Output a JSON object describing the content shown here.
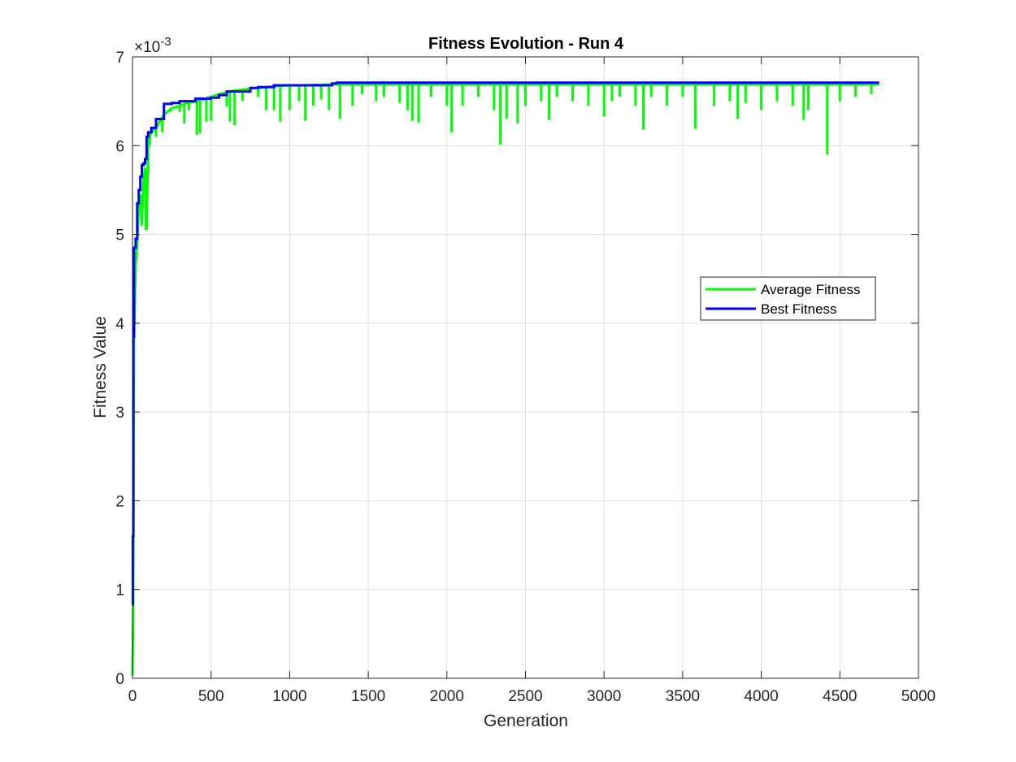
{
  "chart_data": {
    "type": "line",
    "title": "Fitness Evolution - Run 4",
    "xlabel": "Generation",
    "ylabel": "Fitness Value",
    "y_exponent_label": "×10",
    "y_exponent_power": "-3",
    "xlim": [
      0,
      5000
    ],
    "ylim": [
      0,
      7
    ],
    "x_ticks": [
      0,
      500,
      1000,
      1500,
      2000,
      2500,
      3000,
      3500,
      4000,
      4500,
      5000
    ],
    "x_tick_labels": [
      "0",
      "500",
      "1000",
      "1500",
      "2000",
      "2500",
      "3000",
      "3500",
      "4000",
      "4500",
      "5000"
    ],
    "y_ticks": [
      0,
      1,
      2,
      3,
      4,
      5,
      6,
      7
    ],
    "y_tick_labels": [
      "0",
      "1",
      "2",
      "3",
      "4",
      "5",
      "6",
      "7"
    ],
    "grid": true,
    "legend_position": "right",
    "series": [
      {
        "name": "Average Fitness",
        "color": "#00ff00",
        "line_width": 3,
        "x": [
          0,
          5,
          10,
          20,
          30,
          40,
          50,
          60,
          70,
          80,
          90,
          100,
          120,
          150,
          200,
          250,
          300,
          350,
          400,
          450,
          500,
          550,
          600,
          650,
          700,
          750,
          800,
          900,
          1000,
          1100,
          1270,
          1300,
          1500,
          2000,
          2500,
          3000,
          3500,
          4000,
          4500,
          4750
        ],
        "y": [
          0.03,
          0.82,
          3.8,
          4.65,
          4.88,
          5.3,
          5.45,
          5.1,
          5.6,
          5.75,
          5.05,
          6.05,
          6.15,
          6.2,
          6.35,
          6.42,
          6.45,
          6.48,
          6.5,
          6.52,
          6.55,
          6.58,
          6.6,
          6.62,
          6.63,
          6.64,
          6.65,
          6.67,
          6.68,
          6.68,
          6.69,
          6.69,
          6.69,
          6.69,
          6.69,
          6.69,
          6.69,
          6.69,
          6.69,
          6.69
        ],
        "dips": [
          [
            85,
            5.05
          ],
          [
            100,
            5.7
          ],
          [
            110,
            6.0
          ],
          [
            150,
            6.1
          ],
          [
            190,
            6.15
          ],
          [
            240,
            6.38
          ],
          [
            300,
            6.38
          ],
          [
            330,
            6.25
          ],
          [
            360,
            6.4
          ],
          [
            410,
            6.12
          ],
          [
            430,
            6.14
          ],
          [
            470,
            6.27
          ],
          [
            500,
            6.28
          ],
          [
            600,
            6.44
          ],
          [
            620,
            6.27
          ],
          [
            650,
            6.23
          ],
          [
            700,
            6.5
          ],
          [
            800,
            6.55
          ],
          [
            850,
            6.4
          ],
          [
            900,
            6.4
          ],
          [
            940,
            6.27
          ],
          [
            1000,
            6.4
          ],
          [
            1060,
            6.5
          ],
          [
            1100,
            6.28
          ],
          [
            1150,
            6.45
          ],
          [
            1200,
            6.52
          ],
          [
            1250,
            6.4
          ],
          [
            1320,
            6.3
          ],
          [
            1400,
            6.45
          ],
          [
            1460,
            6.58
          ],
          [
            1550,
            6.5
          ],
          [
            1600,
            6.55
          ],
          [
            1700,
            6.48
          ],
          [
            1750,
            6.4
          ],
          [
            1780,
            6.28
          ],
          [
            1820,
            6.26
          ],
          [
            1900,
            6.55
          ],
          [
            2000,
            6.45
          ],
          [
            2030,
            6.15
          ],
          [
            2100,
            6.45
          ],
          [
            2200,
            6.55
          ],
          [
            2300,
            6.4
          ],
          [
            2340,
            6.01
          ],
          [
            2380,
            6.3
          ],
          [
            2450,
            6.25
          ],
          [
            2500,
            6.45
          ],
          [
            2600,
            6.5
          ],
          [
            2650,
            6.29
          ],
          [
            2700,
            6.55
          ],
          [
            2800,
            6.5
          ],
          [
            2900,
            6.45
          ],
          [
            3000,
            6.33
          ],
          [
            3050,
            6.5
          ],
          [
            3100,
            6.55
          ],
          [
            3200,
            6.45
          ],
          [
            3250,
            6.18
          ],
          [
            3300,
            6.55
          ],
          [
            3400,
            6.45
          ],
          [
            3500,
            6.55
          ],
          [
            3580,
            6.19
          ],
          [
            3700,
            6.45
          ],
          [
            3800,
            6.5
          ],
          [
            3850,
            6.3
          ],
          [
            3900,
            6.48
          ],
          [
            4000,
            6.4
          ],
          [
            4100,
            6.5
          ],
          [
            4200,
            6.45
          ],
          [
            4270,
            6.29
          ],
          [
            4300,
            6.4
          ],
          [
            4420,
            5.9
          ],
          [
            4500,
            6.5
          ],
          [
            4600,
            6.55
          ],
          [
            4700,
            6.58
          ]
        ]
      },
      {
        "name": "Best Fitness",
        "color": "#0000ff",
        "line_width": 3,
        "x": [
          0,
          2,
          5,
          10,
          20,
          30,
          40,
          50,
          60,
          70,
          80,
          90,
          100,
          120,
          150,
          200,
          250,
          300,
          400,
          500,
          550,
          600,
          700,
          750,
          800,
          900,
          1000,
          1100,
          1270,
          1300,
          1500,
          2000,
          2500,
          3000,
          3500,
          4000,
          4500,
          4750
        ],
        "y": [
          0.83,
          1.6,
          3.85,
          4.85,
          4.95,
          5.35,
          5.5,
          5.65,
          5.78,
          5.8,
          5.85,
          6.1,
          6.15,
          6.2,
          6.3,
          6.47,
          6.48,
          6.5,
          6.53,
          6.54,
          6.57,
          6.61,
          6.61,
          6.65,
          6.66,
          6.68,
          6.68,
          6.68,
          6.7,
          6.71,
          6.71,
          6.71,
          6.71,
          6.71,
          6.71,
          6.71,
          6.71,
          6.71
        ]
      }
    ]
  }
}
